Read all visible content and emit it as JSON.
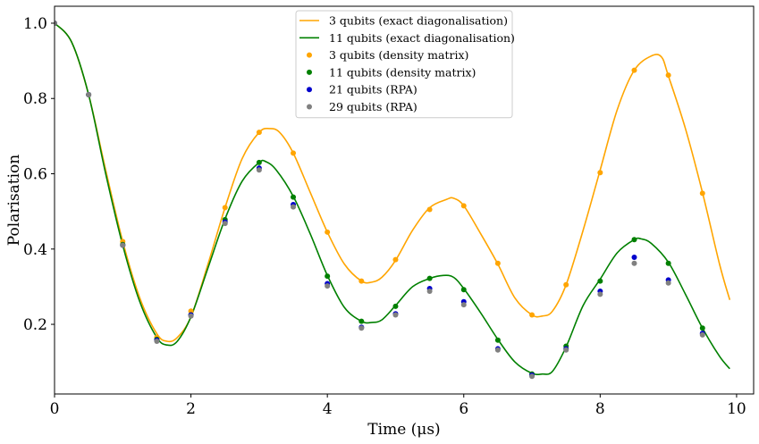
{
  "chart_data": {
    "type": "line",
    "title": "",
    "xlabel": "Time (μs)",
    "ylabel": "Polarisation",
    "xlim": [
      0,
      10.25
    ],
    "ylim": [
      0.015,
      1.045
    ],
    "xticks": [
      0,
      2,
      4,
      6,
      8,
      10
    ],
    "xtick_labels": [
      "0",
      "2",
      "4",
      "6",
      "8",
      "10"
    ],
    "yticks": [
      0.2,
      0.4,
      0.6,
      0.8,
      1.0
    ],
    "ytick_labels": [
      "0.2",
      "0.4",
      "0.6",
      "0.8",
      "1.0"
    ],
    "grid": false,
    "legend_position": "top-center",
    "series": [
      {
        "name": "3 qubits (exact diagonalisation)",
        "kind": "line",
        "color": "#ffa500",
        "x": [
          0,
          0.25,
          0.5,
          0.75,
          1.0,
          1.25,
          1.5,
          1.65,
          1.8,
          2.0,
          2.25,
          2.5,
          2.75,
          3.0,
          3.15,
          3.3,
          3.5,
          3.75,
          4.0,
          4.25,
          4.5,
          4.65,
          4.8,
          5.0,
          5.25,
          5.5,
          5.75,
          5.85,
          6.0,
          6.25,
          6.5,
          6.75,
          7.0,
          7.15,
          7.3,
          7.5,
          7.75,
          8.0,
          8.25,
          8.5,
          8.75,
          8.9,
          9.0,
          9.25,
          9.5,
          9.75,
          9.9
        ],
        "y": [
          1.0,
          0.95,
          0.81,
          0.61,
          0.42,
          0.27,
          0.175,
          0.155,
          0.165,
          0.22,
          0.36,
          0.51,
          0.64,
          0.71,
          0.72,
          0.71,
          0.655,
          0.55,
          0.445,
          0.36,
          0.315,
          0.312,
          0.325,
          0.37,
          0.45,
          0.51,
          0.532,
          0.535,
          0.515,
          0.44,
          0.36,
          0.27,
          0.225,
          0.222,
          0.235,
          0.305,
          0.45,
          0.61,
          0.77,
          0.875,
          0.913,
          0.91,
          0.86,
          0.72,
          0.55,
          0.36,
          0.265
        ]
      },
      {
        "name": "11 qubits (exact diagonalisation)",
        "kind": "line",
        "color": "#008000",
        "x": [
          0,
          0.25,
          0.5,
          0.75,
          1.0,
          1.25,
          1.5,
          1.65,
          1.8,
          2.0,
          2.25,
          2.5,
          2.75,
          3.0,
          3.1,
          3.25,
          3.5,
          3.75,
          4.0,
          4.25,
          4.5,
          4.65,
          4.8,
          5.0,
          5.25,
          5.5,
          5.7,
          5.85,
          6.0,
          6.25,
          6.5,
          6.75,
          7.0,
          7.15,
          7.3,
          7.5,
          7.75,
          8.0,
          8.25,
          8.5,
          8.6,
          8.75,
          9.0,
          9.25,
          9.5,
          9.75,
          9.9
        ],
        "y": [
          1.0,
          0.95,
          0.81,
          0.6,
          0.41,
          0.26,
          0.165,
          0.145,
          0.155,
          0.22,
          0.35,
          0.48,
          0.58,
          0.63,
          0.632,
          0.61,
          0.54,
          0.44,
          0.33,
          0.245,
          0.208,
          0.205,
          0.212,
          0.25,
          0.3,
          0.322,
          0.33,
          0.325,
          0.295,
          0.23,
          0.16,
          0.1,
          0.07,
          0.068,
          0.075,
          0.14,
          0.25,
          0.32,
          0.39,
          0.425,
          0.427,
          0.415,
          0.365,
          0.28,
          0.19,
          0.115,
          0.082
        ]
      },
      {
        "name": "3 qubits (density matrix)",
        "kind": "scatter",
        "color": "#ffa500",
        "x": [
          0,
          0.5,
          1.0,
          1.5,
          2.0,
          2.5,
          3.0,
          3.5,
          4.0,
          4.5,
          5.0,
          5.5,
          6.0,
          6.5,
          7.0,
          7.5,
          8.0,
          8.5,
          9.0,
          9.5
        ],
        "y": [
          1.0,
          0.81,
          0.42,
          0.165,
          0.235,
          0.51,
          0.71,
          0.655,
          0.445,
          0.315,
          0.372,
          0.505,
          0.515,
          0.362,
          0.225,
          0.305,
          0.603,
          0.875,
          0.862,
          0.548
        ]
      },
      {
        "name": "11 qubits (density matrix)",
        "kind": "scatter",
        "color": "#008000",
        "x": [
          0,
          0.5,
          1.0,
          1.5,
          2.0,
          2.5,
          3.0,
          3.5,
          4.0,
          4.5,
          5.0,
          5.5,
          6.0,
          6.5,
          7.0,
          7.5,
          8.0,
          8.5,
          9.0,
          9.5
        ],
        "y": [
          1.0,
          0.81,
          0.412,
          0.16,
          0.225,
          0.478,
          0.63,
          0.538,
          0.328,
          0.208,
          0.248,
          0.322,
          0.292,
          0.158,
          0.068,
          0.142,
          0.315,
          0.425,
          0.362,
          0.19
        ]
      },
      {
        "name": "21 qubits (RPA)",
        "kind": "scatter",
        "color": "#0000cc",
        "x": [
          0,
          0.5,
          1.0,
          1.5,
          2.0,
          2.5,
          3.0,
          3.5,
          4.0,
          4.5,
          5.0,
          5.5,
          6.0,
          6.5,
          7.0,
          7.5,
          8.0,
          8.5,
          9.0,
          9.5
        ],
        "y": [
          1.0,
          0.81,
          0.41,
          0.158,
          0.225,
          0.472,
          0.615,
          0.518,
          0.308,
          0.192,
          0.228,
          0.295,
          0.26,
          0.135,
          0.065,
          0.135,
          0.288,
          0.378,
          0.318,
          0.176
        ]
      },
      {
        "name": "29 qubits (RPA)",
        "kind": "scatter",
        "color": "#808080",
        "x": [
          0,
          0.5,
          1.0,
          1.5,
          2.0,
          2.5,
          3.0,
          3.5,
          4.0,
          4.5,
          5.0,
          5.5,
          6.0,
          6.5,
          7.0,
          7.5,
          8.0,
          8.5,
          9.0,
          9.5
        ],
        "y": [
          1.0,
          0.81,
          0.41,
          0.155,
          0.222,
          0.468,
          0.61,
          0.512,
          0.302,
          0.19,
          0.225,
          0.288,
          0.252,
          0.132,
          0.062,
          0.132,
          0.28,
          0.362,
          0.31,
          0.172
        ]
      }
    ]
  }
}
